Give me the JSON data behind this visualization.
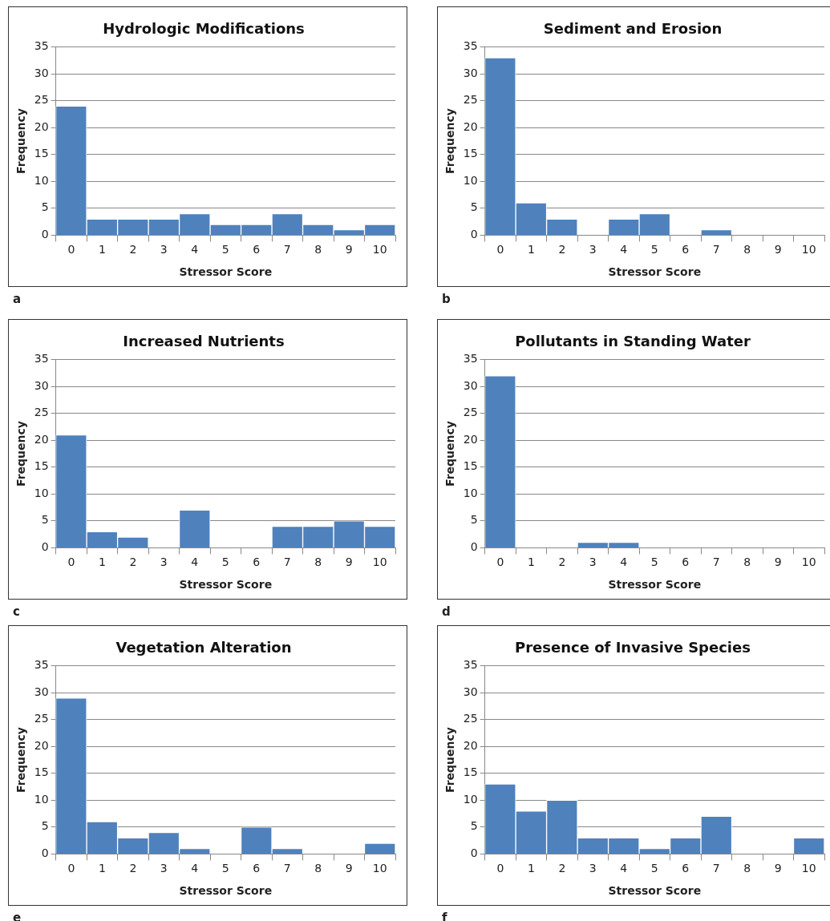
{
  "chart_data": [
    {
      "type": "bar",
      "title": "Hydrologic Modifications",
      "xlabel": "Stressor Score",
      "ylabel": "Frequency",
      "categories": [
        "0",
        "1",
        "2",
        "3",
        "4",
        "5",
        "6",
        "7",
        "8",
        "9",
        "10"
      ],
      "values": [
        24,
        3,
        3,
        3,
        4,
        2,
        2,
        4,
        2,
        1,
        2
      ],
      "color": "#4f81bd",
      "ylim": [
        0,
        35
      ],
      "yticks": [
        0,
        5,
        10,
        15,
        20,
        25,
        30,
        35
      ],
      "grid": "y",
      "annotations": [
        "a"
      ]
    },
    {
      "type": "bar",
      "title": "Sediment and Erosion",
      "xlabel": "Stressor Score",
      "ylabel": "Frequency",
      "categories": [
        "0",
        "1",
        "2",
        "3",
        "4",
        "5",
        "6",
        "7",
        "8",
        "9",
        "10"
      ],
      "values": [
        33,
        6,
        3,
        0,
        3,
        4,
        0,
        1,
        0,
        0,
        0
      ],
      "color": "#4f81bd",
      "ylim": [
        0,
        35
      ],
      "yticks": [
        0,
        5,
        10,
        15,
        20,
        25,
        30,
        35
      ],
      "grid": "y",
      "annotations": [
        "b"
      ]
    },
    {
      "type": "bar",
      "title": "Increased Nutrients",
      "xlabel": "Stressor Score",
      "ylabel": "Frequency",
      "categories": [
        "0",
        "1",
        "2",
        "3",
        "4",
        "5",
        "6",
        "7",
        "8",
        "9",
        "10"
      ],
      "values": [
        21,
        3,
        2,
        0,
        7,
        0,
        0,
        4,
        4,
        5,
        4
      ],
      "color": "#4f81bd",
      "ylim": [
        0,
        35
      ],
      "yticks": [
        0,
        5,
        10,
        15,
        20,
        25,
        30,
        35
      ],
      "grid": "y",
      "annotations": [
        "c"
      ]
    },
    {
      "type": "bar",
      "title": "Pollutants in Standing Water",
      "xlabel": "Stressor Score",
      "ylabel": "Frequency",
      "categories": [
        "0",
        "1",
        "2",
        "3",
        "4",
        "5",
        "6",
        "7",
        "8",
        "9",
        "10"
      ],
      "values": [
        32,
        0,
        0,
        1,
        1,
        0,
        0,
        0,
        0,
        0,
        0
      ],
      "color": "#4f81bd",
      "ylim": [
        0,
        35
      ],
      "yticks": [
        0,
        5,
        10,
        15,
        20,
        25,
        30,
        35
      ],
      "grid": "y",
      "annotations": [
        "d"
      ]
    },
    {
      "type": "bar",
      "title": "Vegetation Alteration",
      "xlabel": "Stressor Score",
      "ylabel": "Frequency",
      "categories": [
        "0",
        "1",
        "2",
        "3",
        "4",
        "5",
        "6",
        "7",
        "8",
        "9",
        "10"
      ],
      "values": [
        29,
        6,
        3,
        4,
        1,
        0,
        5,
        1,
        0,
        0,
        2
      ],
      "color": "#4f81bd",
      "ylim": [
        0,
        35
      ],
      "yticks": [
        0,
        5,
        10,
        15,
        20,
        25,
        30,
        35
      ],
      "grid": "y",
      "annotations": [
        "e"
      ]
    },
    {
      "type": "bar",
      "title": "Presence of Invasive Species",
      "xlabel": "Stressor Score",
      "ylabel": "Frequency",
      "categories": [
        "0",
        "1",
        "2",
        "3",
        "4",
        "5",
        "6",
        "7",
        "8",
        "9",
        "10"
      ],
      "values": [
        13,
        8,
        10,
        3,
        3,
        1,
        3,
        7,
        0,
        0,
        3
      ],
      "color": "#4f81bd",
      "ylim": [
        0,
        35
      ],
      "yticks": [
        0,
        5,
        10,
        15,
        20,
        25,
        30,
        35
      ],
      "grid": "y",
      "annotations": [
        "f"
      ]
    }
  ]
}
